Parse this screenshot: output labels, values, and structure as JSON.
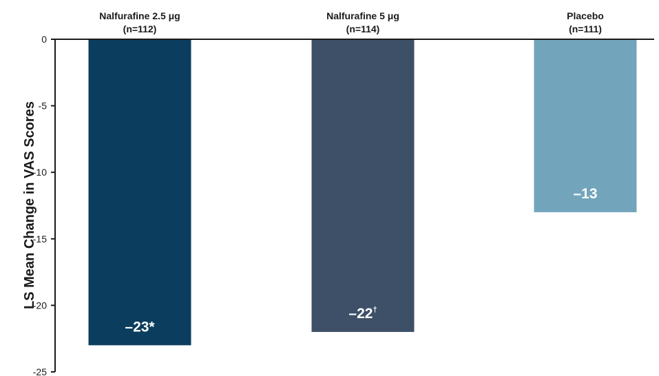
{
  "chart_data": {
    "type": "bar",
    "categories": [
      {
        "name": "Nalfurafine 2.5 μg",
        "n": "(n=112)"
      },
      {
        "name": "Nalfurafine 5 μg",
        "n": "(n=114)"
      },
      {
        "name": "Placebo",
        "n": "(n=111)"
      }
    ],
    "values": [
      -23,
      -22,
      -13
    ],
    "value_labels": [
      {
        "text": "–23*",
        "sup": ""
      },
      {
        "text": "–22",
        "sup": "†"
      },
      {
        "text": "–13",
        "sup": ""
      }
    ],
    "colors": [
      "#0b3d5e",
      "#3e5068",
      "#72a5bb"
    ],
    "ylabel": "LS Mean Change in VAS Scores",
    "xlabel": "",
    "ylim": [
      -25,
      0
    ],
    "yticks": [
      0,
      -5,
      -10,
      -15,
      -20,
      -25
    ],
    "grid": false,
    "category_labels_position": "top"
  }
}
